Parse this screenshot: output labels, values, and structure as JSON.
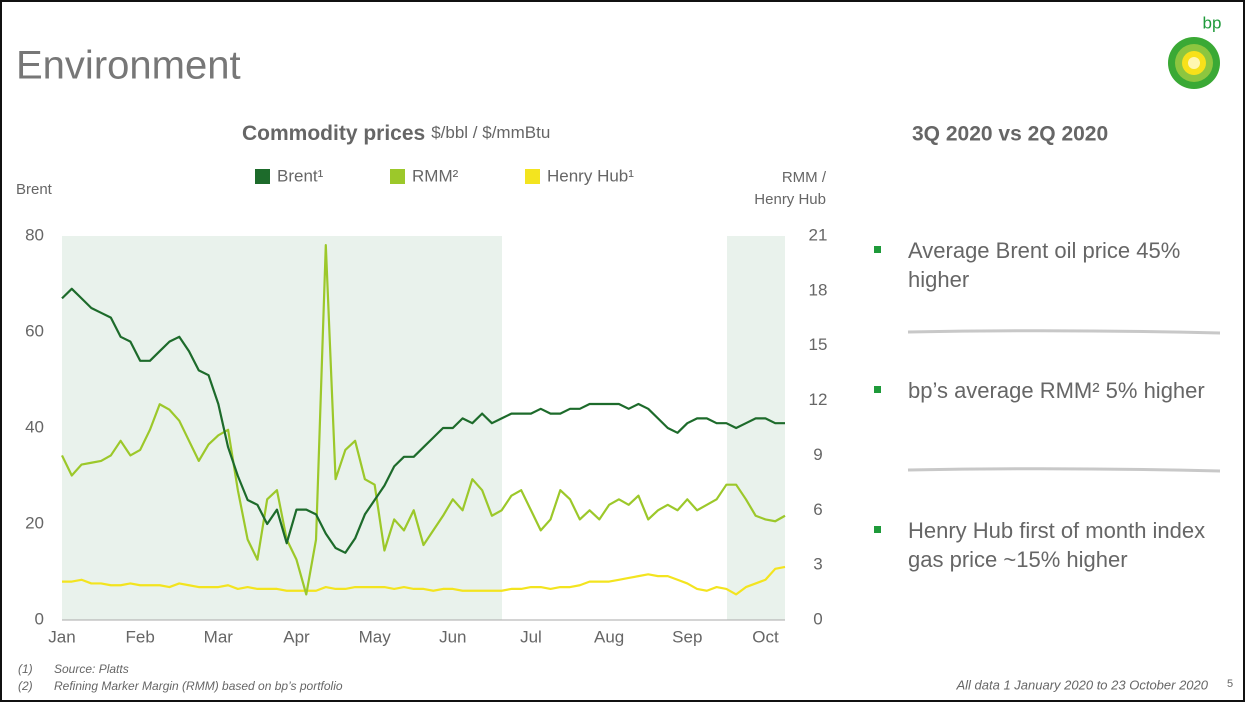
{
  "header": {
    "title": "Environment",
    "logo": "bp"
  },
  "chart_data": {
    "type": "line",
    "title": "Commodity prices",
    "subtitle": "$/bbl / $/mmBtu",
    "ylabel": "Brent",
    "y2label": [
      "RMM /",
      "Henry Hub"
    ],
    "categories": [
      "Jan",
      null,
      null,
      null,
      null,
      null,
      null,
      null,
      "Feb",
      null,
      null,
      null,
      null,
      null,
      null,
      null,
      "Mar",
      null,
      null,
      null,
      null,
      null,
      null,
      null,
      "Apr",
      null,
      null,
      null,
      null,
      null,
      null,
      null,
      "May",
      null,
      null,
      null,
      null,
      null,
      null,
      null,
      "Jun",
      null,
      null,
      null,
      null,
      null,
      null,
      null,
      "Jul",
      null,
      null,
      null,
      null,
      null,
      null,
      null,
      "Aug",
      null,
      null,
      null,
      null,
      null,
      null,
      null,
      "Sep",
      null,
      null,
      null,
      null,
      null,
      null,
      null,
      "Oct",
      null,
      null
    ],
    "ylim": [
      0,
      80
    ],
    "yticks": [
      0,
      20,
      40,
      60,
      80
    ],
    "y2lim": [
      0,
      21
    ],
    "y2ticks": [
      0,
      3,
      6,
      9,
      12,
      15,
      18,
      21
    ],
    "series": [
      {
        "name": "Henry Hub¹",
        "color": "#f3e41f",
        "axis": "y2",
        "values": [
          2.1,
          2.1,
          2.2,
          2.0,
          2.0,
          1.9,
          1.9,
          2.0,
          1.9,
          1.9,
          1.9,
          1.8,
          2.0,
          1.9,
          1.8,
          1.8,
          1.8,
          1.9,
          1.7,
          1.8,
          1.7,
          1.7,
          1.7,
          1.6,
          1.6,
          1.6,
          1.6,
          1.8,
          1.7,
          1.7,
          1.8,
          1.8,
          1.8,
          1.8,
          1.7,
          1.8,
          1.7,
          1.7,
          1.6,
          1.7,
          1.7,
          1.6,
          1.6,
          1.6,
          1.6,
          1.6,
          1.7,
          1.7,
          1.8,
          1.8,
          1.7,
          1.8,
          1.8,
          1.9,
          2.1,
          2.1,
          2.1,
          2.2,
          2.3,
          2.4,
          2.5,
          2.4,
          2.4,
          2.2,
          2.0,
          1.7,
          1.6,
          1.8,
          1.7,
          1.4,
          1.8,
          2.0,
          2.2,
          2.8,
          2.9
        ]
      },
      {
        "name": "RMM²",
        "color": "#9cc82a",
        "axis": "y2",
        "values": [
          9.0,
          7.9,
          8.5,
          8.6,
          8.7,
          9.0,
          9.8,
          9.0,
          9.3,
          10.4,
          11.8,
          11.5,
          10.9,
          9.8,
          8.7,
          9.6,
          10.1,
          10.4,
          7.1,
          4.4,
          3.3,
          6.6,
          7.1,
          4.4,
          3.3,
          1.4,
          4.4,
          20.5,
          7.7,
          9.3,
          9.8,
          7.7,
          7.4,
          3.8,
          5.5,
          4.9,
          6.0,
          4.1,
          4.9,
          5.7,
          6.6,
          6.0,
          7.7,
          7.1,
          5.7,
          6.0,
          6.8,
          7.1,
          6.0,
          4.9,
          5.5,
          7.1,
          6.6,
          5.5,
          6.0,
          5.5,
          6.3,
          6.6,
          6.3,
          6.8,
          5.5,
          6.0,
          6.3,
          6.0,
          6.6,
          6.0,
          6.3,
          6.6,
          7.4,
          7.4,
          6.6,
          5.7,
          5.5,
          5.4,
          5.7
        ]
      },
      {
        "name": "Brent¹",
        "color": "#1d6b2b",
        "axis": "y",
        "values": [
          67,
          69,
          67,
          65,
          64,
          63,
          59,
          58,
          54,
          54,
          56,
          58,
          59,
          56,
          52,
          51,
          45,
          36,
          30,
          25,
          24,
          20,
          23,
          16,
          23,
          23,
          22,
          18,
          15,
          14,
          17,
          22,
          25,
          28,
          32,
          34,
          34,
          36,
          38,
          40,
          40,
          42,
          41,
          43,
          41,
          42,
          43,
          43,
          43,
          44,
          43,
          43,
          44,
          44,
          45,
          45,
          45,
          45,
          44,
          45,
          44,
          42,
          40,
          39,
          41,
          42,
          42,
          41,
          41,
          40,
          41,
          42,
          42,
          41,
          41
        ]
      }
    ]
  },
  "panel": {
    "title": "3Q 2020 vs 2Q 2020",
    "bullets": [
      "Average Brent oil price 45% higher",
      "bp’s average RMM² 5% higher",
      "Henry Hub first of month index gas price ~15% higher"
    ]
  },
  "footnotes": [
    {
      "marker": "(1)",
      "text": "Source: Platts"
    },
    {
      "marker": "(2)",
      "text": "Refining Marker Margin (RMM) based on bp’s portfolio"
    }
  ],
  "note": "All data 1 January 2020 to 23 October 2020",
  "page": "5"
}
